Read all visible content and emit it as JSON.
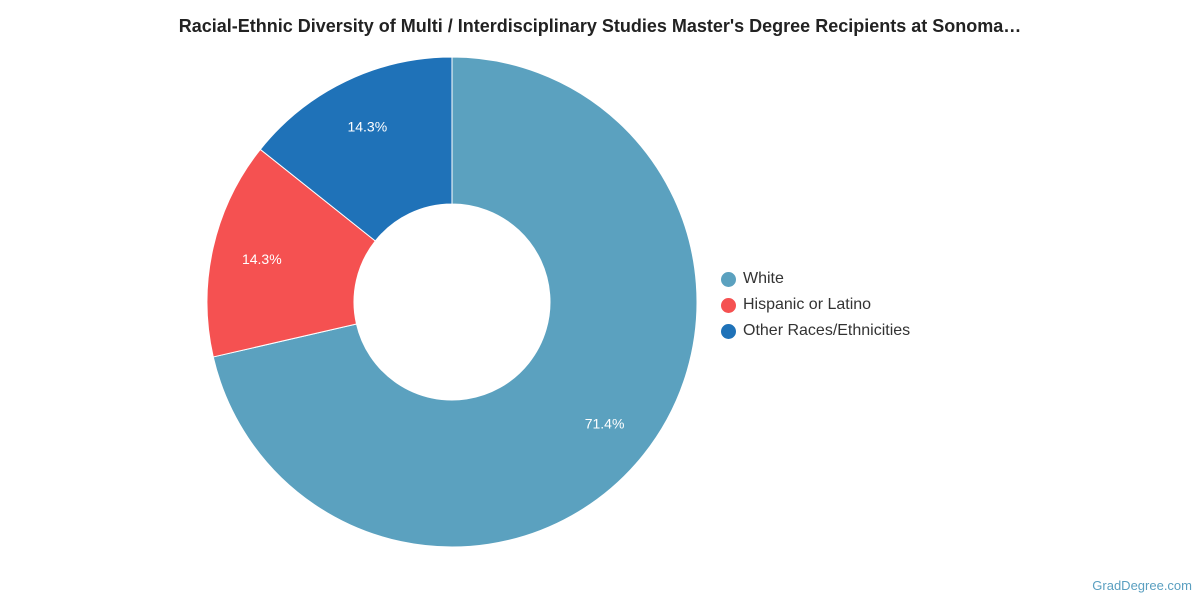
{
  "chart_data": {
    "type": "pie",
    "donut": true,
    "title": "Racial-Ethnic Diversity of Multi / Interdisciplinary Studies Master's Degree Recipients at Sonoma…",
    "series": [
      {
        "name": "White",
        "value": 71.4,
        "label": "71.4%",
        "color": "#5ba1bf"
      },
      {
        "name": "Hispanic or Latino",
        "value": 14.3,
        "label": "14.3%",
        "color": "#f55151"
      },
      {
        "name": "Other Races/Ethnicities",
        "value": 14.3,
        "label": "14.3%",
        "color": "#1f72b8"
      }
    ],
    "legend_position": "right"
  },
  "footer": {
    "source": "GradDegree.com"
  }
}
